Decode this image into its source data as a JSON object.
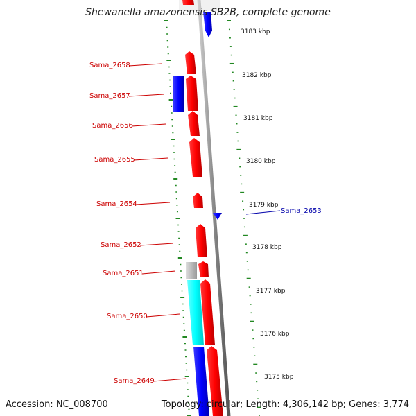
{
  "title": "Shewanella amazonensis SB2B, complete genome",
  "accession": "Accession: NC_008700",
  "summary": "Topology: circular; Length: 4,306,142 bp; Genes: 3,774",
  "colors": {
    "forward_gene": "#ff0000",
    "reverse_gene": "#0000ff",
    "rna": "#00ffff",
    "other": "#bbbbbb",
    "label": "#cc0000",
    "label_reverse": "#0000aa",
    "tick": "#228822",
    "backbone": "#777777"
  },
  "kbp_labels": [
    "3183 kbp",
    "3182 kbp",
    "3181 kbp",
    "3180 kbp",
    "3179 kbp",
    "3178 kbp",
    "3177 kbp",
    "3176 kbp",
    "3175 kbp"
  ],
  "gene_labels": [
    {
      "text": "Sama_2658",
      "strand": "forward"
    },
    {
      "text": "Sama_2657",
      "strand": "forward"
    },
    {
      "text": "Sama_2656",
      "strand": "forward"
    },
    {
      "text": "Sama_2655",
      "strand": "forward"
    },
    {
      "text": "Sama_2654",
      "strand": "forward"
    },
    {
      "text": "Sama_2653",
      "strand": "reverse"
    },
    {
      "text": "Sama_2652",
      "strand": "forward"
    },
    {
      "text": "Sama_2651",
      "strand": "forward"
    },
    {
      "text": "Sama_2650",
      "strand": "forward"
    },
    {
      "text": "Sama_2649",
      "strand": "forward"
    }
  ]
}
